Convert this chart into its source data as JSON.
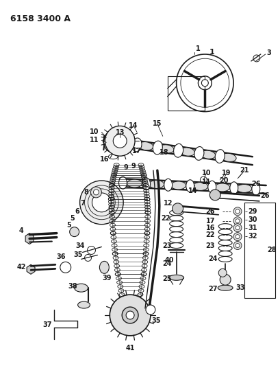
{
  "title": "6158 3400 A",
  "bg_color": "#ffffff",
  "lc": "#1a1a1a",
  "fig_width": 4.1,
  "fig_height": 5.33,
  "dpi": 100
}
